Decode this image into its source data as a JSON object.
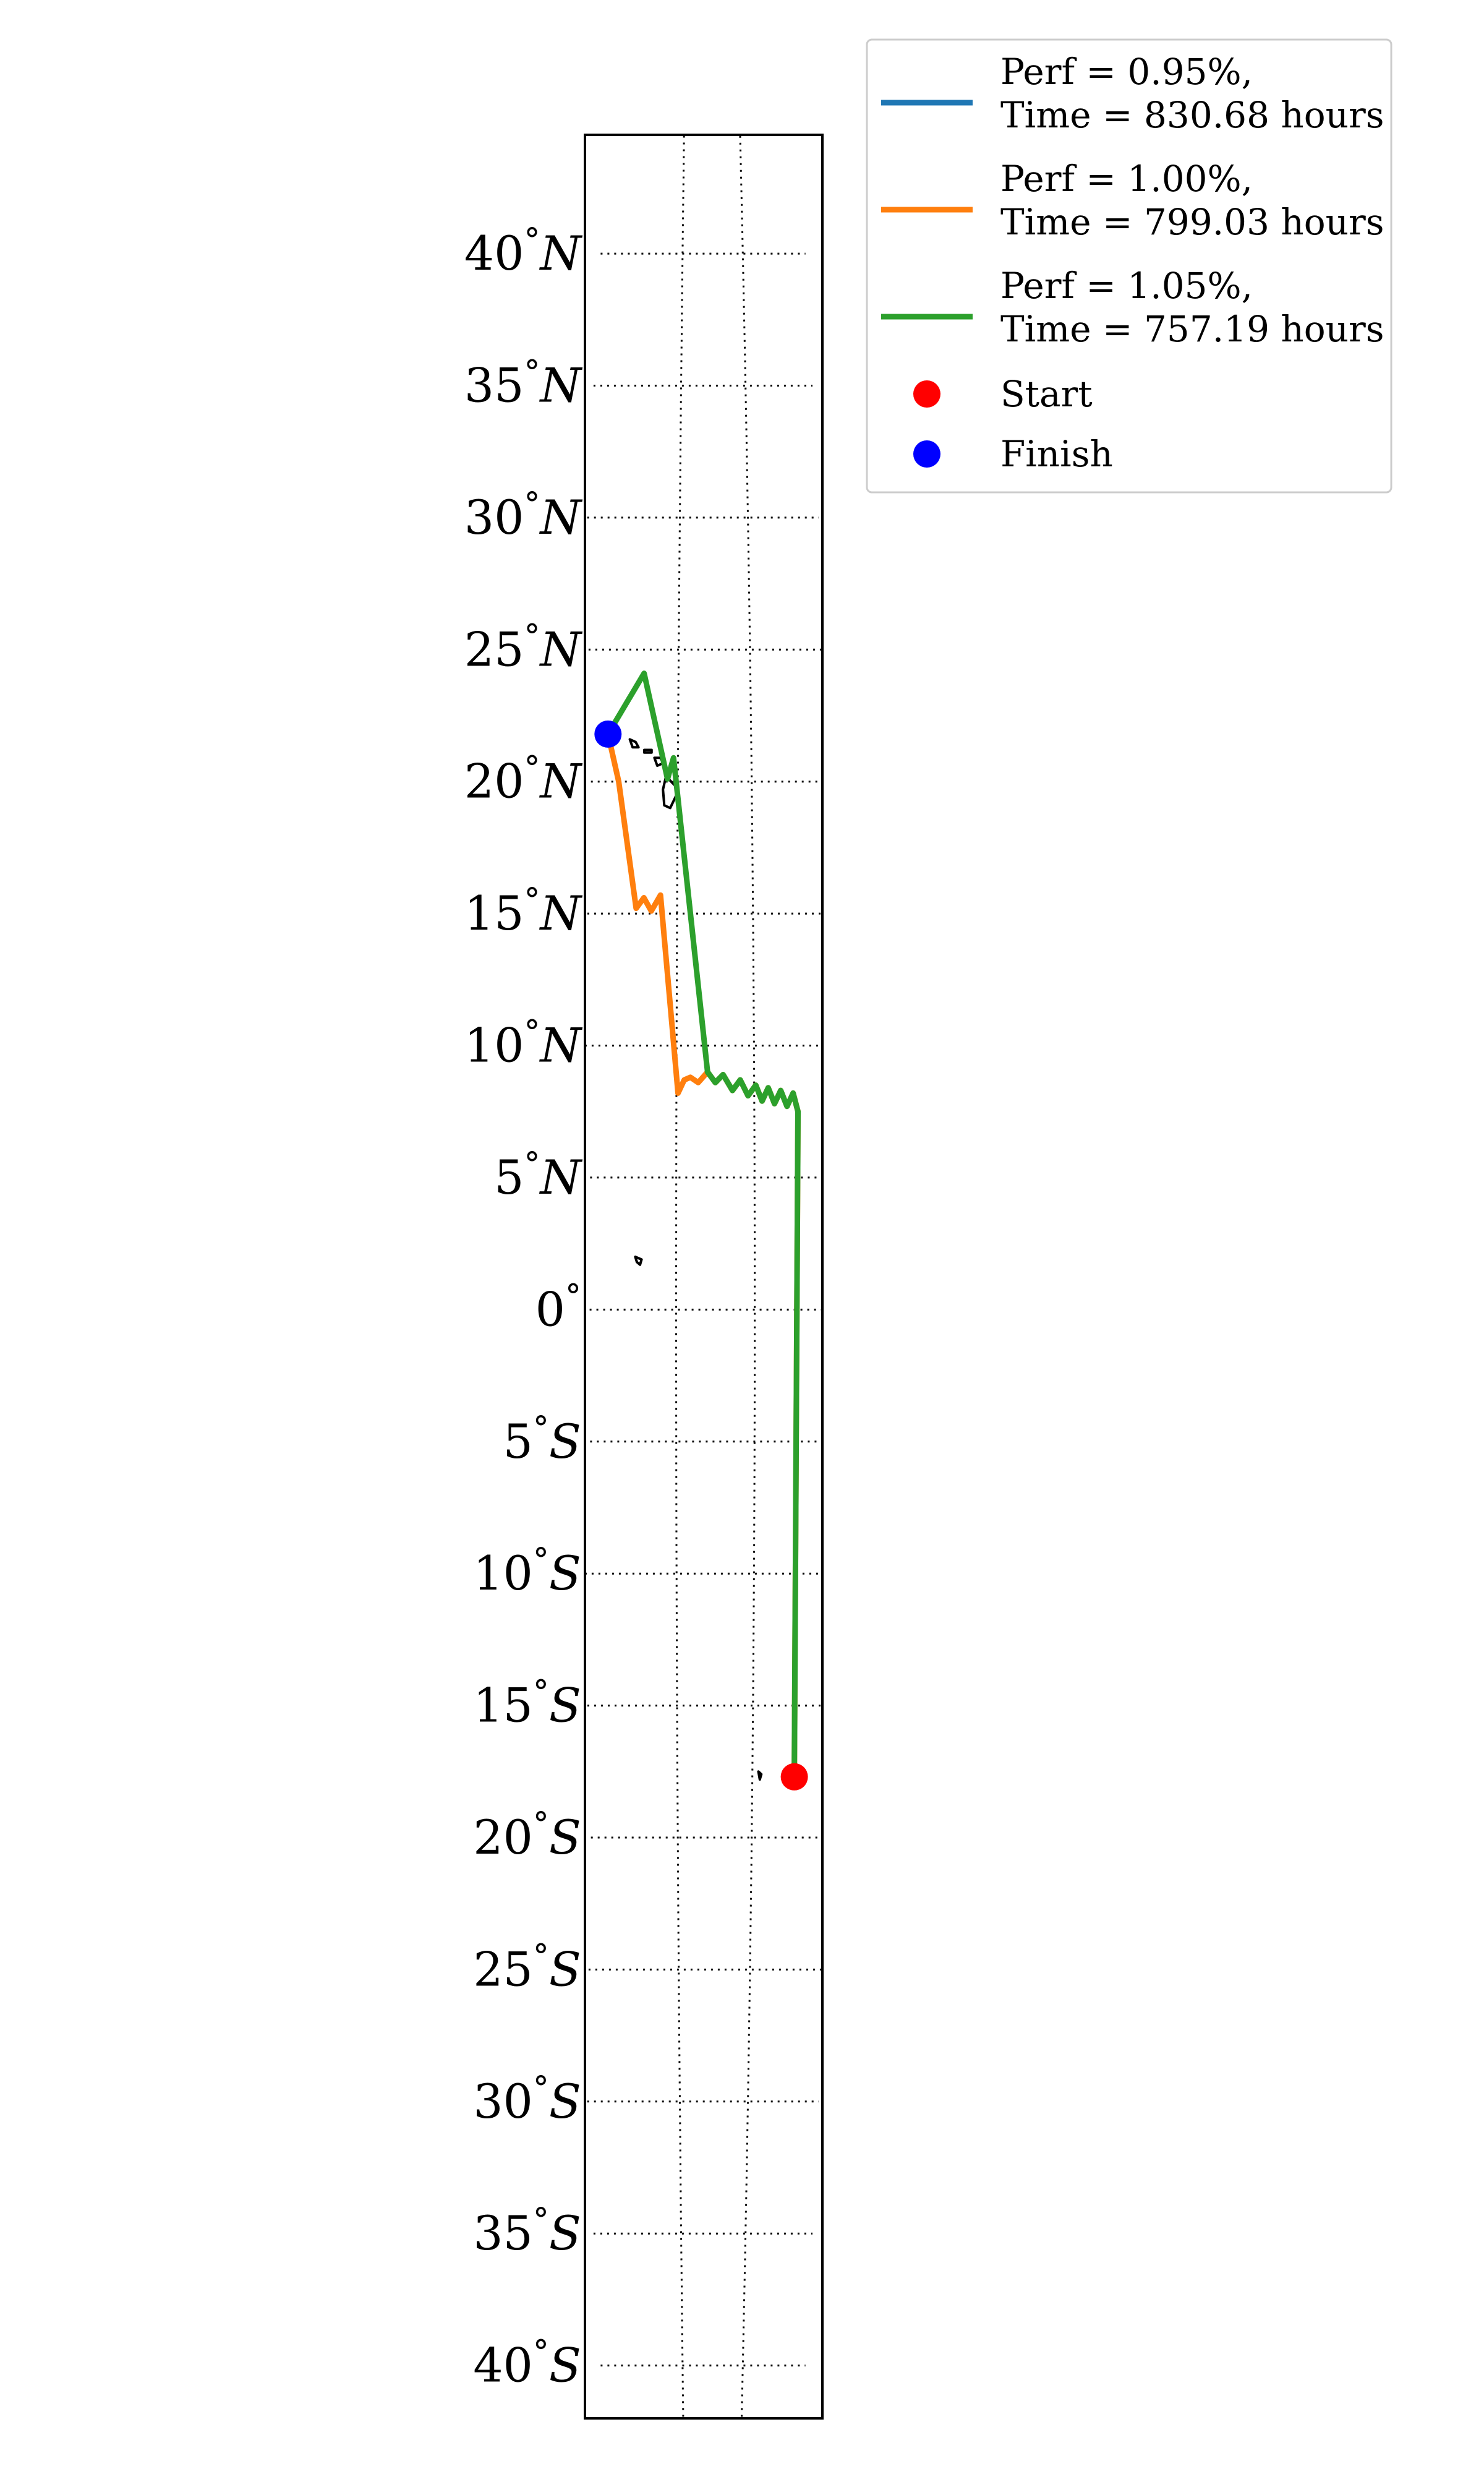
{
  "chart_data": {
    "type": "map",
    "title": "",
    "y_axis": {
      "ticks": [
        {
          "value": 40,
          "num": "40",
          "hem": "N"
        },
        {
          "value": 35,
          "num": "35",
          "hem": "N"
        },
        {
          "value": 30,
          "num": "30",
          "hem": "N"
        },
        {
          "value": 25,
          "num": "25",
          "hem": "N"
        },
        {
          "value": 20,
          "num": "20",
          "hem": "N"
        },
        {
          "value": 15,
          "num": "15",
          "hem": "N"
        },
        {
          "value": 10,
          "num": "10",
          "hem": "N"
        },
        {
          "value": 5,
          "num": "5",
          "hem": "N"
        },
        {
          "value": 0,
          "num": "0",
          "hem": ""
        },
        {
          "value": -5,
          "num": "5",
          "hem": "S"
        },
        {
          "value": -10,
          "num": "10",
          "hem": "S"
        },
        {
          "value": -15,
          "num": "15",
          "hem": "S"
        },
        {
          "value": -20,
          "num": "20",
          "hem": "S"
        },
        {
          "value": -25,
          "num": "25",
          "hem": "S"
        },
        {
          "value": -30,
          "num": "30",
          "hem": "S"
        },
        {
          "value": -35,
          "num": "35",
          "hem": "S"
        },
        {
          "value": -40,
          "num": "40",
          "hem": "S"
        }
      ],
      "degree_symbol": "°",
      "lat_range": [
        -42,
        44.5
      ]
    },
    "x_axis": {
      "lon_range": [
        -160.8,
        -145.7
      ],
      "meridians": [
        -155,
        -150
      ]
    },
    "grid": true,
    "legend_position": "upper right, outside plot",
    "series": [
      {
        "name": "Perf = 0.95%,",
        "subtitle": "Time = 830.68 hours",
        "color": "#1f77b4",
        "points": []
      },
      {
        "name": "Perf = 1.00%,",
        "subtitle": "Time = 799.03 hours",
        "color": "#ff7f0e",
        "points": [
          [
            -147.2,
            -17.7
          ],
          [
            -147.2,
            7.5
          ],
          [
            -147.5,
            8.2
          ],
          [
            -147.9,
            7.7
          ],
          [
            -148.3,
            8.3
          ],
          [
            -148.7,
            7.8
          ],
          [
            -149.1,
            8.4
          ],
          [
            -149.5,
            7.9
          ],
          [
            -149.9,
            8.5
          ],
          [
            -150.4,
            8.1
          ],
          [
            -150.9,
            8.7
          ],
          [
            -151.4,
            8.3
          ],
          [
            -152.0,
            8.9
          ],
          [
            -152.5,
            8.6
          ],
          [
            -153.0,
            9.0
          ],
          [
            -153.6,
            8.6
          ],
          [
            -154.1,
            8.8
          ],
          [
            -154.5,
            8.7
          ],
          [
            -154.9,
            8.2
          ],
          [
            -156.1,
            15.7
          ],
          [
            -156.7,
            15.1
          ],
          [
            -157.2,
            15.6
          ],
          [
            -157.7,
            15.2
          ],
          [
            -159.0,
            20.0
          ],
          [
            -159.8,
            21.8
          ]
        ]
      },
      {
        "name": "Perf = 1.05%,",
        "subtitle": "Time = 757.19 hours",
        "color": "#2ca02c",
        "points": [
          [
            -147.2,
            -17.7
          ],
          [
            -147.2,
            7.5
          ],
          [
            -147.5,
            8.2
          ],
          [
            -147.9,
            7.7
          ],
          [
            -148.3,
            8.3
          ],
          [
            -148.7,
            7.8
          ],
          [
            -149.1,
            8.4
          ],
          [
            -149.5,
            7.9
          ],
          [
            -149.9,
            8.5
          ],
          [
            -150.4,
            8.1
          ],
          [
            -150.9,
            8.7
          ],
          [
            -151.4,
            8.3
          ],
          [
            -152.0,
            8.9
          ],
          [
            -152.5,
            8.6
          ],
          [
            -153.0,
            9.0
          ],
          [
            -155.3,
            20.9
          ],
          [
            -155.7,
            20.1
          ],
          [
            -157.4,
            24.1
          ],
          [
            -159.8,
            21.8
          ]
        ]
      }
    ],
    "markers": [
      {
        "name": "Start",
        "color": "#ff0000",
        "lon": -147.2,
        "lat": -17.7
      },
      {
        "name": "Finish",
        "color": "#0000ff",
        "lon": -159.8,
        "lat": 21.8
      }
    ],
    "coastlines": [
      {
        "island": "Hawaii",
        "points": [
          [
            -155.8,
            20.2
          ],
          [
            -155.1,
            19.8
          ],
          [
            -155.0,
            19.6
          ],
          [
            -155.5,
            19.0
          ],
          [
            -155.9,
            19.1
          ],
          [
            -156.0,
            19.7
          ],
          [
            -155.8,
            20.2
          ]
        ]
      },
      {
        "island": "Maui",
        "points": [
          [
            -156.6,
            20.9
          ],
          [
            -156.2,
            20.9
          ],
          [
            -156.0,
            20.7
          ],
          [
            -156.4,
            20.6
          ],
          [
            -156.6,
            20.9
          ]
        ]
      },
      {
        "island": "Molokai",
        "points": [
          [
            -157.3,
            21.2
          ],
          [
            -156.8,
            21.2
          ],
          [
            -156.8,
            21.1
          ],
          [
            -157.3,
            21.1
          ],
          [
            -157.3,
            21.2
          ]
        ]
      },
      {
        "island": "Oahu",
        "points": [
          [
            -158.3,
            21.6
          ],
          [
            -157.9,
            21.5
          ],
          [
            -157.7,
            21.3
          ],
          [
            -158.1,
            21.3
          ],
          [
            -158.3,
            21.6
          ]
        ]
      },
      {
        "island": "Kauai",
        "points": [
          [
            -159.7,
            22.2
          ],
          [
            -159.3,
            22.2
          ],
          [
            -159.4,
            21.9
          ],
          [
            -159.7,
            22.0
          ],
          [
            -159.7,
            22.2
          ]
        ]
      },
      {
        "island": "Kiritimati",
        "points": [
          [
            -157.6,
            2.0
          ],
          [
            -157.2,
            1.9
          ],
          [
            -157.3,
            1.7
          ],
          [
            -157.5,
            1.8
          ],
          [
            -157.6,
            2.0
          ]
        ]
      },
      {
        "island": "Tahiti",
        "points": [
          [
            -149.6,
            -17.5
          ],
          [
            -149.4,
            -17.6
          ],
          [
            -149.5,
            -17.8
          ],
          [
            -149.6,
            -17.5
          ]
        ]
      }
    ]
  }
}
